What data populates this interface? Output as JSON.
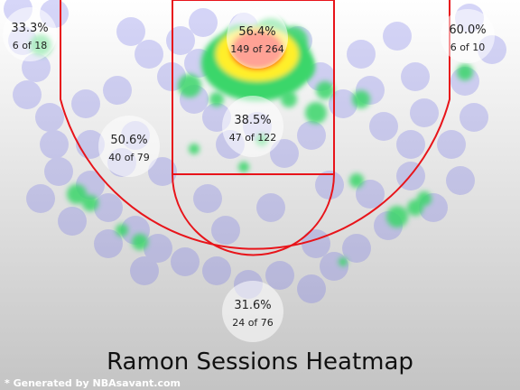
{
  "chart_data": {
    "type": "heatmap",
    "title": "Ramon Sessions Heatmap",
    "footer": "* Generated by NBAsavant.com",
    "zones": [
      {
        "name": "left-corner-three",
        "pct": "33.3%",
        "made_of_attempts": "6 of 18",
        "made": 6,
        "attempts": 18
      },
      {
        "name": "restricted-area",
        "pct": "56.4%",
        "made_of_attempts": "149 of 264",
        "made": 149,
        "attempts": 264
      },
      {
        "name": "right-corner-three",
        "pct": "60.0%",
        "made_of_attempts": "6 of 10",
        "made": 6,
        "attempts": 10
      },
      {
        "name": "left-mid-range",
        "pct": "50.6%",
        "made_of_attempts": "40 of 79",
        "made": 40,
        "attempts": 79
      },
      {
        "name": "paint-non-ra",
        "pct": "38.5%",
        "made_of_attempts": "47 of 122",
        "made": 47,
        "attempts": 122
      },
      {
        "name": "above-break-three",
        "pct": "31.6%",
        "made_of_attempts": "24 of 76",
        "made": 24,
        "attempts": 76
      }
    ],
    "colors": {
      "court_line": "#e8141a",
      "background_top": "#ffffff",
      "background_bottom": "#c4c4c4",
      "heat_low": "#6e6ee8",
      "heat_mid": "#3ad66a",
      "heat_high": "#ffef2a",
      "heat_peak": "#ff3018"
    }
  }
}
